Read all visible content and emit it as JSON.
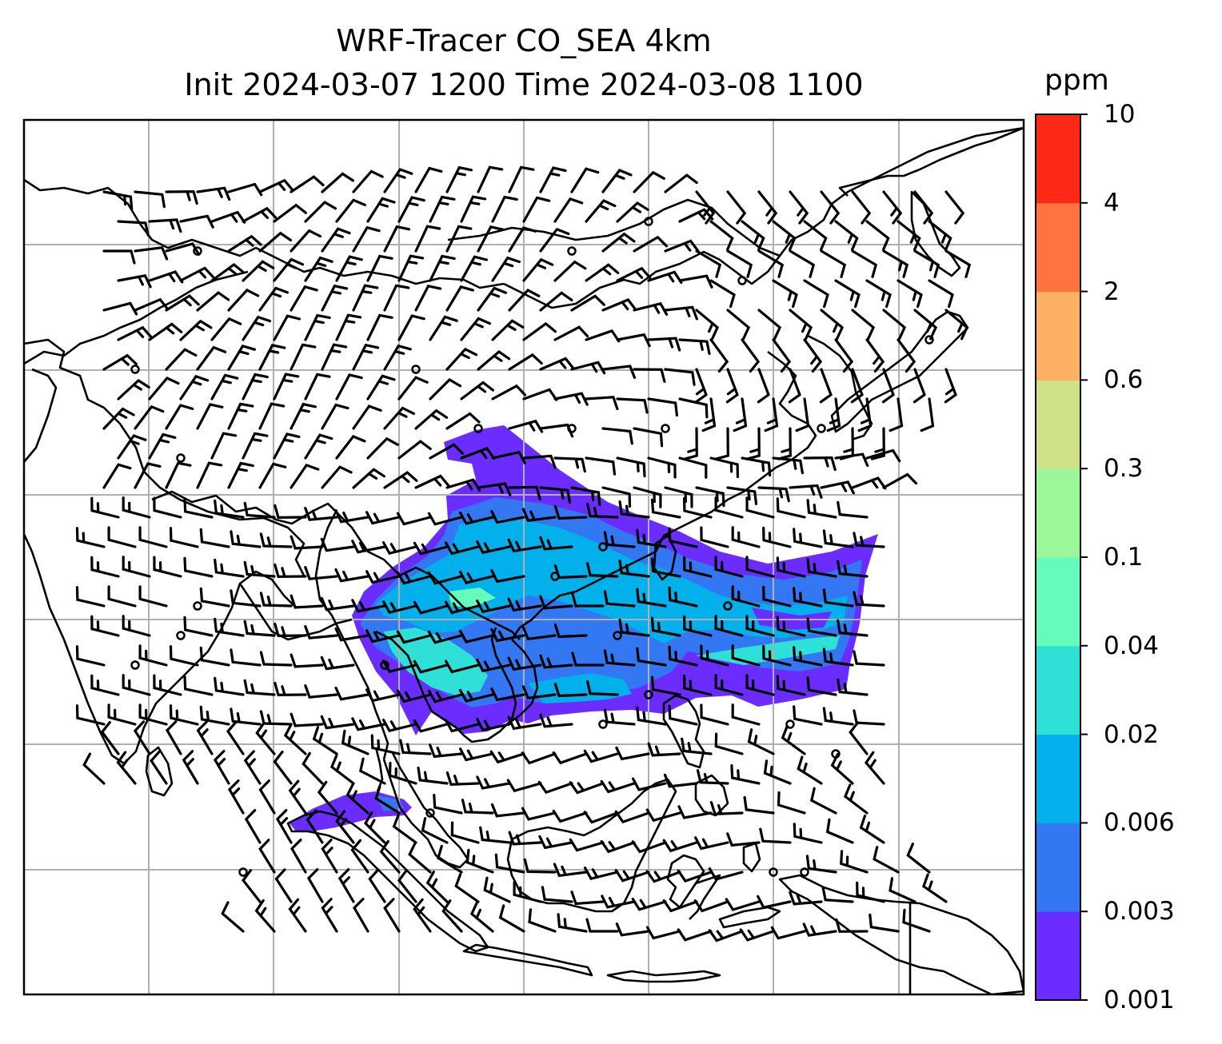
{
  "title": {
    "line1": "WRF-Tracer CO_SEA 4km",
    "line2": "Init 2024-03-07 1200 Time 2024-03-08 1100"
  },
  "colorbar": {
    "unit": "ppm",
    "ticks": [
      "0.001",
      "0.003",
      "0.006",
      "0.02",
      "0.04",
      "0.1",
      "0.3",
      "0.6",
      "2",
      "4",
      "10"
    ],
    "colors": [
      "#6a2cff",
      "#3377f3",
      "#02b1ec",
      "#2ee0d5",
      "#64fbbb",
      "#9af79a",
      "#cfe287",
      "#fcb064",
      "#ff733e",
      "#fe2817"
    ]
  },
  "map": {
    "coastline_color": "#000000",
    "grid_color": "#b0b0b0",
    "barb_color": "#000000"
  }
}
